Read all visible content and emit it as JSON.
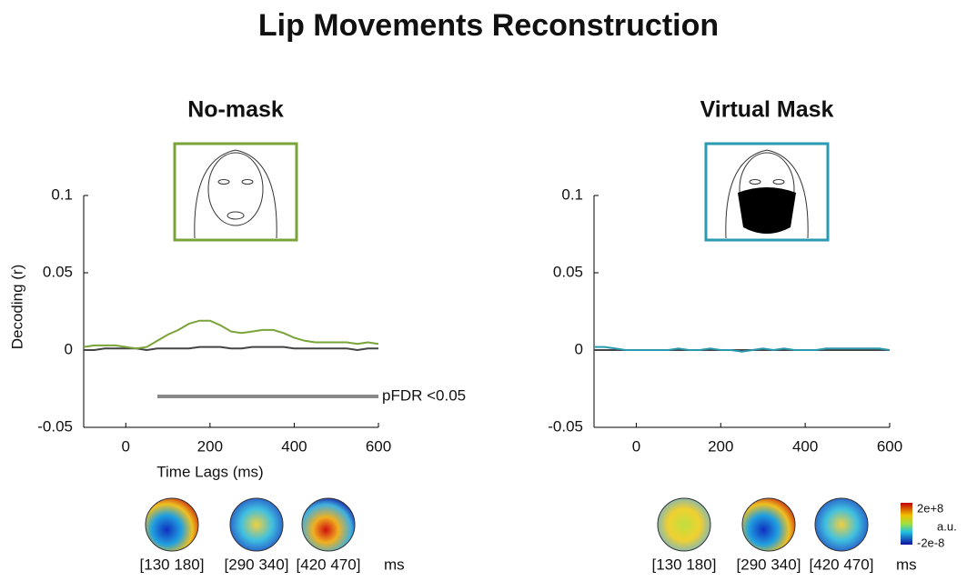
{
  "title": "Lip Movements Reconstruction",
  "chart_data": [
    {
      "type": "line",
      "title": "No-mask",
      "x_label": "Time Lags (ms)",
      "y_label": "Decoding (r)",
      "x": [
        -100,
        -75,
        -50,
        -25,
        0,
        25,
        50,
        75,
        100,
        125,
        150,
        175,
        200,
        225,
        250,
        275,
        300,
        325,
        350,
        375,
        400,
        425,
        450,
        475,
        500,
        525,
        550,
        575,
        600
      ],
      "series": [
        {
          "color": "#7aa33a",
          "values": [
            0.002,
            0.003,
            0.003,
            0.003,
            0.002,
            0.001,
            0.002,
            0.006,
            0.01,
            0.013,
            0.017,
            0.019,
            0.019,
            0.016,
            0.012,
            0.011,
            0.012,
            0.013,
            0.013,
            0.011,
            0.008,
            0.006,
            0.005,
            0.005,
            0.005,
            0.005,
            0.004,
            0.005,
            0.004
          ]
        },
        {
          "color": "#444444",
          "values": [
            0,
            0,
            0.001,
            0.001,
            0.001,
            0.001,
            0,
            0.001,
            0.001,
            0.001,
            0.001,
            0.002,
            0.002,
            0.002,
            0.001,
            0.001,
            0.002,
            0.002,
            0.002,
            0.002,
            0.001,
            0.001,
            0.001,
            0.001,
            0.001,
            0.001,
            0,
            0.001,
            0.001
          ]
        }
      ],
      "xlim": [
        -100,
        600
      ],
      "xticks": [
        0,
        200,
        400,
        600
      ],
      "ylim": [
        -0.05,
        0.1
      ],
      "yticks": [
        -0.05,
        0,
        0.05,
        0.1
      ],
      "frame_color": "#7aa33a",
      "mask": false,
      "significance": {
        "label": "pFDR <0.05",
        "x": [
          75,
          600
        ],
        "y": -0.03,
        "color": "#888888"
      },
      "topomaps": {
        "labels": [
          "[130 180]",
          "[290 340]",
          "[420 470]"
        ],
        "unit": "ms"
      }
    },
    {
      "type": "line",
      "title": "Virtual Mask",
      "x": [
        -100,
        -75,
        -50,
        -25,
        0,
        25,
        50,
        75,
        100,
        125,
        150,
        175,
        200,
        225,
        250,
        275,
        300,
        325,
        350,
        375,
        400,
        425,
        450,
        475,
        500,
        525,
        550,
        575,
        600
      ],
      "series": [
        {
          "color": "#2a9ab0",
          "values": [
            0.002,
            0.002,
            0.001,
            0,
            0,
            0,
            0,
            0,
            0.001,
            0,
            0,
            0.001,
            0,
            0,
            -0.001,
            0,
            0.001,
            0,
            0.001,
            0,
            0,
            0,
            0.001,
            0.001,
            0.001,
            0.001,
            0.001,
            0.001,
            0
          ]
        },
        {
          "color": "#444444",
          "values": [
            0,
            0,
            0,
            0,
            0,
            0,
            0,
            0,
            0,
            0,
            0,
            0,
            0,
            0,
            0,
            0,
            0,
            0,
            0,
            0,
            0,
            0,
            0,
            0,
            0,
            0,
            0,
            0,
            0
          ]
        }
      ],
      "xlim": [
        -100,
        600
      ],
      "xticks": [
        0,
        200,
        400,
        600
      ],
      "ylim": [
        -0.05,
        0.1
      ],
      "yticks": [
        -0.05,
        0,
        0.05,
        0.1
      ],
      "frame_color": "#2a9ab0",
      "mask": true,
      "topomaps": {
        "labels": [
          "[130 180]",
          "[290 340]",
          "[420 470]"
        ],
        "unit": "ms"
      },
      "colorbar": {
        "max_label": "2e+8",
        "min_label": "-2e-8",
        "unit": "a.u."
      }
    }
  ]
}
